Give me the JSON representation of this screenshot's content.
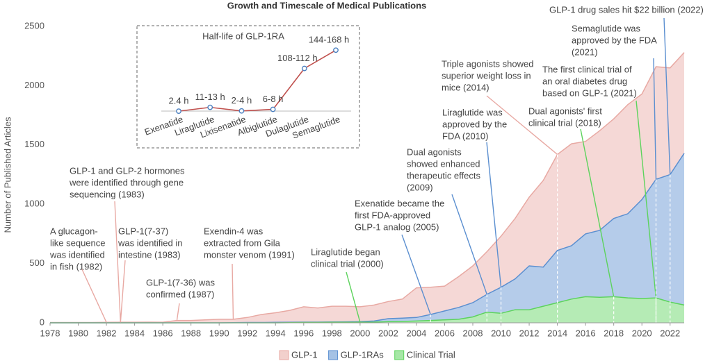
{
  "chart_data": {
    "type": "area",
    "title": "Growth and Timescale of Medical Publications",
    "y_label": "Number of Published Articles",
    "x": [
      1978,
      1979,
      1980,
      1981,
      1982,
      1983,
      1984,
      1985,
      1986,
      1987,
      1988,
      1989,
      1990,
      1991,
      1992,
      1993,
      1994,
      1995,
      1996,
      1997,
      1998,
      1999,
      2000,
      2001,
      2002,
      2003,
      2004,
      2005,
      2006,
      2007,
      2008,
      2009,
      2010,
      2011,
      2012,
      2013,
      2014,
      2015,
      2016,
      2017,
      2018,
      2019,
      2020,
      2021,
      2022,
      2023
    ],
    "series": [
      {
        "name": "GLP-1",
        "color": "#e8a9a3",
        "values": [
          3,
          3,
          3,
          3,
          4,
          5,
          5,
          6,
          5,
          20,
          20,
          25,
          30,
          30,
          45,
          70,
          85,
          105,
          135,
          125,
          140,
          140,
          135,
          150,
          180,
          200,
          295,
          300,
          310,
          390,
          480,
          600,
          730,
          880,
          1060,
          1200,
          1420,
          1510,
          1530,
          1620,
          1720,
          1840,
          1930,
          2160,
          2150,
          2280
        ]
      },
      {
        "name": "GLP-1RAs",
        "color": "#5b8fd0",
        "values": [
          0,
          0,
          0,
          0,
          0,
          0,
          0,
          0,
          0,
          0,
          0,
          0,
          0,
          2,
          3,
          3,
          4,
          5,
          6,
          6,
          7,
          8,
          10,
          15,
          35,
          40,
          45,
          70,
          100,
          130,
          170,
          240,
          300,
          370,
          480,
          470,
          610,
          650,
          750,
          780,
          880,
          920,
          1040,
          1210,
          1250,
          1430
        ]
      },
      {
        "name": "Clinical Trial",
        "color": "#5cd35c",
        "values": [
          0,
          0,
          0,
          0,
          0,
          0,
          0,
          0,
          0,
          0,
          0,
          0,
          0,
          0,
          0,
          0,
          0,
          2,
          3,
          3,
          4,
          4,
          5,
          6,
          10,
          12,
          15,
          20,
          25,
          30,
          50,
          90,
          80,
          110,
          110,
          140,
          170,
          200,
          220,
          215,
          220,
          210,
          205,
          210,
          175,
          150
        ]
      }
    ],
    "xlim": [
      1978,
      2023
    ],
    "xticks": [
      1978,
      1980,
      1982,
      1984,
      1986,
      1988,
      1990,
      1992,
      1994,
      1996,
      1998,
      2000,
      2002,
      2004,
      2006,
      2008,
      2010,
      2012,
      2014,
      2016,
      2018,
      2020,
      2022
    ],
    "ylim": [
      0,
      2500
    ],
    "yticks": [
      0,
      500,
      1000,
      1500,
      2000,
      2500
    ],
    "legend": "bottom",
    "annotations": [
      {
        "lines": [
          "A glucagon-",
          "like sequence",
          "was identified",
          "in fish (1982)"
        ],
        "x": 1982,
        "color": "#e8a9a3"
      },
      {
        "lines": [
          "GLP-1 and GLP-2 hormones",
          "were identified through gene",
          "sequencing (1983)"
        ],
        "x": 1983,
        "color": "#e8a9a3"
      },
      {
        "lines": [
          "GLP-1(7-37)",
          "was identified in",
          "intestine (1983)"
        ],
        "x": 1983,
        "color": "#e8a9a3"
      },
      {
        "lines": [
          "GLP-1(7-36) was",
          "confirmed (1987)"
        ],
        "x": 1987,
        "color": "#e8a9a3"
      },
      {
        "lines": [
          "Exendin-4 was",
          "extracted from Gila",
          "monster venom (1991)"
        ],
        "x": 1991,
        "color": "#e8a9a3"
      },
      {
        "lines": [
          "Liraglutide began",
          "clinical trial (2000)"
        ],
        "x": 2000,
        "color": "#5cd35c"
      },
      {
        "lines": [
          "Exenatide became the",
          "first FDA-approved",
          "GLP-1 analog (2005)"
        ],
        "x": 2005,
        "color": "#5b8fd0"
      },
      {
        "lines": [
          "Dual agonists",
          "showed enhanced",
          "therapeutic effects",
          "(2009)"
        ],
        "x": 2009,
        "color": "#5b8fd0"
      },
      {
        "lines": [
          "Liraglutide was",
          "approved by the",
          "FDA (2010)"
        ],
        "x": 2010,
        "color": "#5b8fd0"
      },
      {
        "lines": [
          "Triple agonists showed",
          "superior weight loss in",
          "mice (2014)"
        ],
        "x": 2014,
        "color": "#e8a9a3"
      },
      {
        "lines": [
          "Dual agonists' first",
          "clinical trial (2018)"
        ],
        "x": 2018,
        "color": "#5cd35c"
      },
      {
        "lines": [
          "The first clinical trial of",
          "an oral diabetes drug",
          "based on GLP-1 (2021)"
        ],
        "x": 2021,
        "color": "#5cd35c"
      },
      {
        "lines": [
          "Semaglutide was",
          "approved by the FDA",
          "(2021)"
        ],
        "x": 2021,
        "color": "#5b8fd0"
      },
      {
        "lines": [
          "GLP-1 drug sales hit $22 billion (2022)"
        ],
        "x": 2022,
        "color": "#5b8fd0"
      }
    ],
    "inset": {
      "type": "line",
      "title": "Half-life of GLP-1RA",
      "categories": [
        "Exenatide",
        "Liraglutide",
        "Lixisenatide",
        "Albiglutide",
        "Dulaglutide",
        "Semaglutide"
      ],
      "values": [
        2.4,
        12,
        3,
        7,
        110,
        156
      ],
      "value_labels": [
        "2.4 h",
        "11-13 h",
        "2-4 h",
        "6-8 h",
        "108-112 h",
        "144-168 h"
      ],
      "color": "#c0504d",
      "marker_color": "#4a7fbf"
    }
  }
}
